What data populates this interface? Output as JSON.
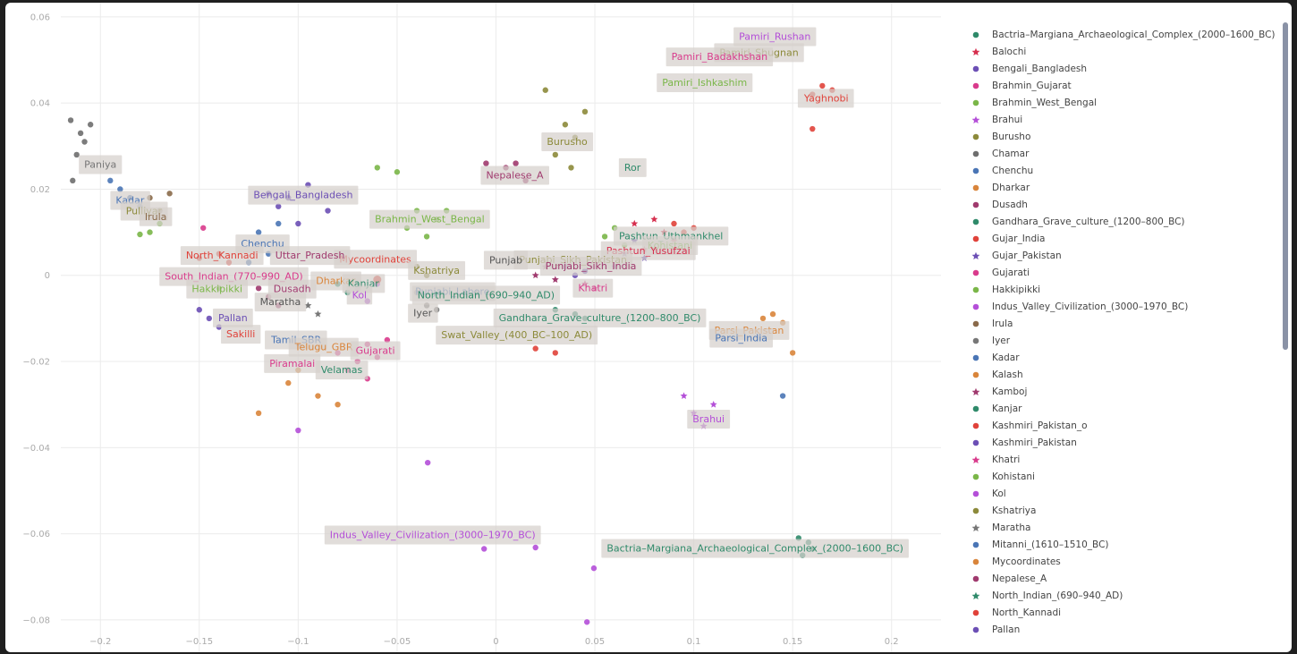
{
  "chart_data": {
    "type": "scatter",
    "xlim": [
      -0.22,
      0.225
    ],
    "ylim": [
      -0.0875,
      0.0633
    ],
    "x_ticks": [
      -0.2,
      -0.15,
      -0.1,
      -0.05,
      0,
      0.05,
      0.1,
      0.15,
      0.2
    ],
    "x_tick_labels": [
      "−0.2",
      "−0.15",
      "−0.1",
      "−0.05",
      "0",
      "0.05",
      "0.1",
      "0.15",
      "0.2"
    ],
    "y_ticks": [
      0.06,
      0.04,
      0.02,
      0,
      -0.02,
      -0.04,
      -0.06,
      -0.08
    ],
    "y_tick_labels": [
      "0.06",
      "0.04",
      "0.02",
      "0",
      "−0.02",
      "−0.04",
      "−0.06",
      "−0.08"
    ],
    "grid": true,
    "legend_position": "right",
    "series": [
      {
        "name": "Bactria–Margiana_Archaeological_Complex_(2000–1600_BC)",
        "color": "#2f8a6a",
        "marker": "circle",
        "points": [
          [
            0.153,
            -0.061
          ],
          [
            0.158,
            -0.062
          ],
          [
            0.155,
            -0.065
          ],
          [
            0.16,
            -0.0635
          ]
        ]
      },
      {
        "name": "Balochi",
        "color": "#d62f4e",
        "marker": "star",
        "points": [
          [
            0.07,
            0.012
          ],
          [
            0.08,
            0.013
          ],
          [
            0.085,
            0.01
          ],
          [
            0.09,
            0.008
          ],
          [
            0.075,
            0.006
          ]
        ]
      },
      {
        "name": "Bengali_Bangladesh",
        "color": "#6c4fb5",
        "marker": "circle",
        "points": [
          [
            -0.105,
            0.018
          ],
          [
            -0.11,
            0.016
          ],
          [
            -0.095,
            0.021
          ],
          [
            -0.1,
            0.012
          ],
          [
            -0.085,
            0.015
          ],
          [
            -0.115,
            0.019
          ]
        ]
      },
      {
        "name": "Brahmin_Gujarat",
        "color": "#d93b8c",
        "marker": "circle",
        "points": [
          [
            -0.075,
            -0.022
          ],
          [
            -0.07,
            -0.02
          ],
          [
            -0.08,
            -0.018
          ],
          [
            -0.065,
            -0.024
          ]
        ]
      },
      {
        "name": "Brahmin_West_Bengal",
        "color": "#7ab648",
        "marker": "circle",
        "points": [
          [
            -0.04,
            0.015
          ],
          [
            -0.045,
            0.011
          ],
          [
            -0.03,
            0.013
          ],
          [
            -0.025,
            0.015
          ],
          [
            -0.035,
            0.009
          ],
          [
            -0.06,
            0.025
          ],
          [
            -0.05,
            0.024
          ]
        ]
      },
      {
        "name": "Brahui",
        "color": "#b44fd8",
        "marker": "star",
        "points": [
          [
            0.1,
            -0.032
          ],
          [
            0.105,
            -0.035
          ],
          [
            0.11,
            -0.03
          ],
          [
            0.095,
            -0.028
          ]
        ]
      },
      {
        "name": "Burusho",
        "color": "#8c8a3a",
        "marker": "circle",
        "points": [
          [
            0.035,
            0.035
          ],
          [
            0.04,
            0.032
          ],
          [
            0.045,
            0.038
          ],
          [
            0.03,
            0.028
          ],
          [
            0.025,
            0.043
          ],
          [
            0.038,
            0.025
          ]
        ]
      },
      {
        "name": "Chamar",
        "color": "#6e6e6e",
        "marker": "circle",
        "points": [
          [
            -0.215,
            0.036
          ],
          [
            -0.21,
            0.033
          ],
          [
            -0.212,
            0.028
          ],
          [
            -0.205,
            0.035
          ],
          [
            -0.208,
            0.031
          ],
          [
            -0.214,
            0.022
          ]
        ]
      },
      {
        "name": "Chenchu",
        "color": "#4a75b5",
        "marker": "circle",
        "points": [
          [
            -0.12,
            0.01
          ],
          [
            -0.115,
            0.005
          ],
          [
            -0.125,
            0.003
          ],
          [
            -0.11,
            0.012
          ]
        ]
      },
      {
        "name": "Dharkar",
        "color": "#d9853b",
        "marker": "circle",
        "points": [
          [
            -0.12,
            -0.032
          ],
          [
            -0.105,
            -0.025
          ],
          [
            -0.09,
            -0.028
          ],
          [
            -0.08,
            -0.03
          ],
          [
            -0.1,
            -0.022
          ]
        ]
      },
      {
        "name": "Dusadh",
        "color": "#a03a6e",
        "marker": "circle",
        "points": [
          [
            -0.115,
            -0.005
          ],
          [
            -0.12,
            -0.003
          ],
          [
            -0.11,
            -0.007
          ]
        ]
      },
      {
        "name": "Gandhara_Grave_culture_(1200–800_BC)",
        "color": "#2f8a6a",
        "marker": "circle",
        "points": [
          [
            0.03,
            -0.008
          ],
          [
            0.04,
            -0.009
          ],
          [
            0.045,
            -0.01
          ]
        ]
      },
      {
        "name": "Gujar_India",
        "color": "#e0423a",
        "marker": "circle",
        "points": [
          [
            0.09,
            0.012
          ],
          [
            0.095,
            0.01
          ],
          [
            0.1,
            0.011
          ],
          [
            0.02,
            -0.017
          ],
          [
            0.03,
            -0.018
          ]
        ]
      },
      {
        "name": "Gujar_Pakistan",
        "color": "#6c4fb5",
        "marker": "star",
        "points": [
          [
            0.06,
            0.002
          ],
          [
            0.065,
            0.005
          ],
          [
            0.07,
            0.008
          ],
          [
            0.075,
            0.004
          ]
        ]
      },
      {
        "name": "Gujarati",
        "color": "#d93b8c",
        "marker": "circle",
        "points": [
          [
            -0.065,
            -0.016
          ],
          [
            -0.06,
            -0.019
          ],
          [
            -0.055,
            -0.015
          ],
          [
            -0.148,
            0.011
          ]
        ]
      },
      {
        "name": "Hakkipikki",
        "color": "#7ab648",
        "marker": "circle",
        "points": [
          [
            -0.17,
            0.012
          ],
          [
            -0.175,
            0.01
          ],
          [
            -0.18,
            0.0095
          ],
          [
            -0.14,
            -0.003
          ]
        ]
      },
      {
        "name": "Indus_Valley_Civilization_(3000–1970_BC)",
        "color": "#b44fd8",
        "marker": "circle",
        "points": [
          [
            -0.0345,
            -0.0435
          ],
          [
            -0.006,
            -0.0635
          ],
          [
            0.02,
            -0.0632
          ],
          [
            0.0495,
            -0.068
          ],
          [
            0.046,
            -0.0805
          ],
          [
            -0.1,
            -0.036
          ]
        ]
      },
      {
        "name": "Irula",
        "color": "#8a6a4a",
        "marker": "circle",
        "points": [
          [
            -0.175,
            0.018
          ],
          [
            -0.17,
            0.015
          ],
          [
            -0.165,
            0.019
          ]
        ]
      },
      {
        "name": "Iyer",
        "color": "#777777",
        "marker": "circle",
        "points": [
          [
            -0.04,
            -0.004
          ],
          [
            -0.035,
            -0.007
          ],
          [
            -0.03,
            -0.008
          ]
        ]
      },
      {
        "name": "Kadar",
        "color": "#4a75b5",
        "marker": "circle",
        "points": [
          [
            -0.19,
            0.02
          ],
          [
            -0.185,
            0.018
          ],
          [
            -0.18,
            0.016
          ],
          [
            -0.195,
            0.022
          ]
        ]
      },
      {
        "name": "Kalash",
        "color": "#d9853b",
        "marker": "circle",
        "points": [
          [
            0.135,
            -0.01
          ],
          [
            0.14,
            -0.009
          ],
          [
            0.145,
            -0.011
          ],
          [
            0.15,
            -0.018
          ]
        ]
      },
      {
        "name": "Kamboj",
        "color": "#a03a6e",
        "marker": "star",
        "points": [
          [
            0.02,
            0.0
          ],
          [
            0.025,
            0.002
          ],
          [
            0.03,
            -0.001
          ]
        ]
      },
      {
        "name": "Kanjar",
        "color": "#2f8a6a",
        "marker": "circle",
        "points": [
          [
            -0.08,
            -0.002
          ],
          [
            -0.075,
            -0.004
          ]
        ]
      },
      {
        "name": "Kashmiri_Pakistan_o",
        "color": "#e0423a",
        "marker": "circle",
        "points": [
          [
            0.16,
            0.042
          ],
          [
            0.165,
            0.044
          ],
          [
            0.17,
            0.043
          ],
          [
            0.16,
            0.034
          ]
        ]
      },
      {
        "name": "Kashmiri_Pakistan",
        "color": "#6c4fb5",
        "marker": "circle",
        "points": [
          [
            0.035,
            0.002
          ],
          [
            0.04,
            0.0
          ],
          [
            0.045,
            0.001
          ]
        ]
      },
      {
        "name": "Khatri",
        "color": "#d93b8c",
        "marker": "star",
        "points": [
          [
            0.045,
            -0.002
          ],
          [
            0.05,
            -0.003
          ]
        ]
      },
      {
        "name": "Kohistani",
        "color": "#7ab648",
        "marker": "circle",
        "points": [
          [
            0.055,
            0.009
          ],
          [
            0.06,
            0.011
          ],
          [
            0.065,
            0.007
          ]
        ]
      },
      {
        "name": "Kol",
        "color": "#b44fd8",
        "marker": "circle",
        "points": [
          [
            -0.07,
            -0.003
          ],
          [
            -0.065,
            -0.006
          ],
          [
            -0.06,
            -0.002
          ]
        ]
      },
      {
        "name": "Kshatriya",
        "color": "#8c8a3a",
        "marker": "circle",
        "points": [
          [
            -0.04,
            0.002
          ],
          [
            -0.035,
            0.0
          ]
        ]
      },
      {
        "name": "Maratha",
        "color": "#777777",
        "marker": "star",
        "points": [
          [
            -0.095,
            -0.007
          ],
          [
            -0.09,
            -0.009
          ]
        ]
      },
      {
        "name": "Mitanni_(1610–1510_BC)",
        "color": "#4a75b5",
        "marker": "circle",
        "points": [
          [
            0.145,
            -0.028
          ]
        ]
      },
      {
        "name": "Mycoordinates",
        "color": "#d9853b",
        "marker": "circle",
        "points": [
          [
            -0.06,
            -0.001
          ]
        ]
      },
      {
        "name": "Nepalese_A",
        "color": "#a03a6e",
        "marker": "circle",
        "points": [
          [
            -0.005,
            0.026
          ],
          [
            0.005,
            0.025
          ],
          [
            0.01,
            0.026
          ],
          [
            0.015,
            0.022
          ]
        ]
      },
      {
        "name": "North_Indian_(690–940_AD)",
        "color": "#2f8a6a",
        "marker": "star",
        "points": [
          [
            -0.01,
            -0.004
          ]
        ]
      },
      {
        "name": "North_Kannadi",
        "color": "#e0423a",
        "marker": "circle",
        "points": [
          [
            -0.14,
            0.005
          ],
          [
            -0.135,
            0.003
          ],
          [
            -0.15,
            0.004
          ]
        ]
      },
      {
        "name": "Pallan",
        "color": "#6c4fb5",
        "marker": "circle",
        "points": [
          [
            -0.145,
            -0.01
          ],
          [
            -0.14,
            -0.012
          ],
          [
            -0.15,
            -0.008
          ]
        ]
      }
    ],
    "annotations": [
      {
        "text": "Pamiri_Rushan",
        "x": 0.141,
        "y": 0.0555,
        "color": "#b44fd8"
      },
      {
        "text": "Pamiri_Shugnan",
        "x": 0.133,
        "y": 0.0518,
        "color": "#8c8a3a"
      },
      {
        "text": "Pamiri_Badakhshan",
        "x": 0.113,
        "y": 0.0508,
        "color": "#d93b8c"
      },
      {
        "text": "Pamiri_Ishkashim",
        "x": 0.1055,
        "y": 0.0448,
        "color": "#7ab648"
      },
      {
        "text": "Yaghnobi",
        "x": 0.167,
        "y": 0.0412,
        "color": "#e0423a"
      },
      {
        "text": "Burusho",
        "x": 0.036,
        "y": 0.0311,
        "color": "#8c8a3a"
      },
      {
        "text": "Ror",
        "x": 0.069,
        "y": 0.0251,
        "color": "#2f8a6a"
      },
      {
        "text": "Nepalese_A",
        "x": 0.0095,
        "y": 0.0233,
        "color": "#a03a6e"
      },
      {
        "text": "Paniya",
        "x": -0.2,
        "y": 0.0258,
        "color": "#777777"
      },
      {
        "text": "Bengali_Bangladesh",
        "x": -0.0975,
        "y": 0.0187,
        "color": "#6c4fb5"
      },
      {
        "text": "Kadar",
        "x": -0.185,
        "y": 0.0175,
        "color": "#4a75b5"
      },
      {
        "text": "Pulliyar",
        "x": -0.178,
        "y": 0.015,
        "color": "#8c8a3a"
      },
      {
        "text": "Irula",
        "x": -0.172,
        "y": 0.0137,
        "color": "#8a6a4a"
      },
      {
        "text": "Brahmin_West_Bengal",
        "x": -0.0335,
        "y": 0.0131,
        "color": "#7ab648"
      },
      {
        "text": "Pashtun_Uthmankhel",
        "x": 0.0885,
        "y": 0.0092,
        "color": "#2f8a6a"
      },
      {
        "text": "Kohistani",
        "x": 0.088,
        "y": 0.007,
        "color": "#7ab648"
      },
      {
        "text": "Chenchu",
        "x": -0.118,
        "y": 0.0074,
        "color": "#4a75b5"
      },
      {
        "text": "Pashtun_Yusufzai",
        "x": 0.077,
        "y": 0.0058,
        "color": "#d62f4e"
      },
      {
        "text": "Mycoordinates",
        "x": -0.061,
        "y": 0.0042,
        "color": "#e0423a",
        "size": 16
      },
      {
        "text": "North_Kannadi",
        "x": -0.1385,
        "y": 0.0047,
        "color": "#e0423a"
      },
      {
        "text": "Uttar_Pradesh",
        "x": -0.094,
        "y": 0.0047,
        "color": "#a03a6e"
      },
      {
        "text": "Punjabi_Sikh_Pakistan",
        "x": 0.039,
        "y": 0.0037,
        "color": "#8c8a3a"
      },
      {
        "text": "Punjab",
        "x": 0.005,
        "y": 0.0036,
        "color": "#555555"
      },
      {
        "text": "Punjabi_Sikh_India",
        "x": 0.048,
        "y": 0.0022,
        "color": "#a03a6e"
      },
      {
        "text": "Kshatriya",
        "x": -0.03,
        "y": 0.0012,
        "color": "#8c8a3a"
      },
      {
        "text": "South_Indian_(770–990_AD)",
        "x": -0.1325,
        "y": -0.0002,
        "color": "#d93b8c"
      },
      {
        "text": "Dharkar",
        "x": -0.081,
        "y": -0.0012,
        "color": "#d9853b"
      },
      {
        "text": "Kanjar",
        "x": -0.067,
        "y": -0.0018,
        "color": "#2f8a6a"
      },
      {
        "text": "Hakkipikki",
        "x": -0.141,
        "y": -0.0031,
        "color": "#7ab648"
      },
      {
        "text": "Dusadh",
        "x": -0.103,
        "y": -0.0031,
        "color": "#a03a6e"
      },
      {
        "text": "Khatri",
        "x": 0.049,
        "y": -0.0029,
        "color": "#d93b8c"
      },
      {
        "text": "Punjabi_Lahore",
        "x": -0.022,
        "y": -0.0037,
        "color": "#4a75b5"
      },
      {
        "text": "North_Indian_(690–940_AD)",
        "x": -0.005,
        "y": -0.0045,
        "color": "#2f8a6a"
      },
      {
        "text": "Kol",
        "x": -0.069,
        "y": -0.0045,
        "color": "#b44fd8"
      },
      {
        "text": "Maratha",
        "x": -0.109,
        "y": -0.0061,
        "color": "#555555"
      },
      {
        "text": "Iyer",
        "x": -0.037,
        "y": -0.0087,
        "color": "#555555"
      },
      {
        "text": "Pallan",
        "x": -0.133,
        "y": -0.0098,
        "color": "#6c4fb5"
      },
      {
        "text": "Gandhara_Grave_culture_(1200–800_BC)",
        "x": 0.0525,
        "y": -0.0098,
        "color": "#2f8a6a"
      },
      {
        "text": "Parsi_Pakistan",
        "x": 0.128,
        "y": -0.0127,
        "color": "#d9853b"
      },
      {
        "text": "Sakilli",
        "x": -0.129,
        "y": -0.0136,
        "color": "#e0423a"
      },
      {
        "text": "Swat_Valley_(400_BC–100_AD)",
        "x": 0.0105,
        "y": -0.0138,
        "color": "#8c8a3a"
      },
      {
        "text": "Parsi_India",
        "x": 0.124,
        "y": -0.0145,
        "color": "#4a75b5"
      },
      {
        "text": "Tamil_SBR",
        "x": -0.101,
        "y": -0.0149,
        "color": "#4a75b5"
      },
      {
        "text": "Telugu_GBR",
        "x": -0.087,
        "y": -0.0166,
        "color": "#d9853b"
      },
      {
        "text": "Gujarati",
        "x": -0.061,
        "y": -0.0174,
        "color": "#d93b8c"
      },
      {
        "text": "Piramalai",
        "x": -0.103,
        "y": -0.0204,
        "color": "#d93b8c"
      },
      {
        "text": "Velamas",
        "x": -0.078,
        "y": -0.0219,
        "color": "#2f8a6a"
      },
      {
        "text": "Brahui",
        "x": 0.1075,
        "y": -0.0333,
        "color": "#b44fd8"
      },
      {
        "text": "Indus_Valley_Civilization_(3000–1970_BC)",
        "x": -0.032,
        "y": -0.0602,
        "color": "#b44fd8"
      },
      {
        "text": "Bactria–Margiana_Archaeological_Complex_(2000–1600_BC)",
        "x": 0.131,
        "y": -0.0633,
        "color": "#2f8a6a"
      }
    ]
  }
}
